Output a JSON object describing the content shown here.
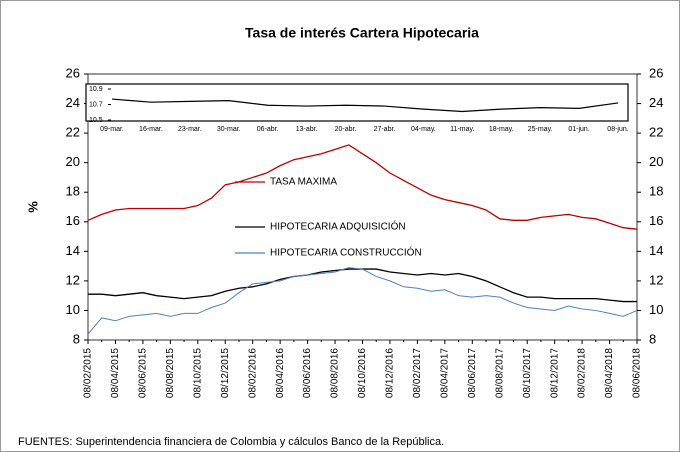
{
  "chart_data": [
    {
      "type": "line",
      "title": "Tasa de interés Cartera Hipotecaria",
      "y_label": "%",
      "source": "FUENTES: Superintendencia financiera de Colombia y cálculos Banco de la República.",
      "categories": [
        "08/02/2015",
        null,
        "08/04/2015",
        null,
        "08/06/2015",
        null,
        "08/08/2015",
        null,
        "08/10/2015",
        null,
        "08/12/2015",
        null,
        "08/02/2016",
        null,
        "08/04/2016",
        null,
        "08/06/2016",
        null,
        "08/08/2016",
        null,
        "08/10/2016",
        null,
        "08/12/2016",
        null,
        "08/02/2017",
        null,
        "08/04/2017",
        null,
        "08/06/2017",
        null,
        "08/08/2017",
        null,
        "08/10/2017",
        null,
        "08/12/2017",
        null,
        "08/02/2018",
        null,
        "08/04/2018",
        null,
        "08/06/2018"
      ],
      "series": [
        {
          "name": "TASA MAXIMA",
          "color": "#c00000",
          "values": [
            16.1,
            16.5,
            16.8,
            16.9,
            16.9,
            16.9,
            16.9,
            16.9,
            17.1,
            17.6,
            18.5,
            18.7,
            19.0,
            19.3,
            19.8,
            20.2,
            20.4,
            20.6,
            20.9,
            21.2,
            20.6,
            20.0,
            19.3,
            18.8,
            18.3,
            17.8,
            17.5,
            17.3,
            17.1,
            16.8,
            16.2,
            16.1,
            16.1,
            16.3,
            16.4,
            16.5,
            16.3,
            16.2,
            15.9,
            15.6,
            15.5
          ]
        },
        {
          "name": "HIPOTECARIA ADQUISICIÓN",
          "color": "#000000",
          "values": [
            11.1,
            11.1,
            11.0,
            11.1,
            11.2,
            11.0,
            10.9,
            10.8,
            10.9,
            11.0,
            11.3,
            11.5,
            11.6,
            11.8,
            12.1,
            12.3,
            12.4,
            12.6,
            12.7,
            12.8,
            12.8,
            12.8,
            12.6,
            12.5,
            12.4,
            12.5,
            12.4,
            12.5,
            12.3,
            12.0,
            11.6,
            11.2,
            10.9,
            10.9,
            10.8,
            10.8,
            10.8,
            10.8,
            10.7,
            10.6,
            10.6
          ]
        },
        {
          "name": "HIPOTECARIA CONSTRUCCIÓN",
          "color": "#4f81bd",
          "values": [
            8.4,
            9.5,
            9.3,
            9.6,
            9.7,
            9.8,
            9.6,
            9.8,
            9.8,
            10.2,
            10.5,
            11.2,
            11.8,
            11.9,
            12.0,
            12.3,
            12.4,
            12.5,
            12.6,
            12.9,
            12.8,
            12.3,
            12.0,
            11.6,
            11.5,
            11.3,
            11.4,
            11.0,
            10.9,
            11.0,
            10.9,
            10.5,
            10.2,
            10.1,
            10.0,
            10.3,
            10.1,
            10.0,
            9.8,
            9.6,
            10.0
          ]
        }
      ],
      "ylim": [
        8,
        26
      ],
      "yticks": [
        8,
        10,
        12,
        14,
        16,
        18,
        20,
        22,
        24,
        26
      ],
      "y2lim": [
        8,
        26
      ],
      "y2ticks": [
        8,
        10,
        12,
        14,
        16,
        18,
        20,
        22,
        24,
        26
      ]
    },
    {
      "type": "line",
      "categories": [
        "09-mar.",
        "16-mar.",
        "23-mar.",
        "30-mar.",
        "06-abr.",
        "13-abr.",
        "20-abr.",
        "27-abr.",
        "04-may.",
        "11-may.",
        "18-may.",
        "25-may.",
        "01-jun.",
        "08-jun."
      ],
      "values": [
        10.77,
        10.73,
        10.74,
        10.75,
        10.69,
        10.68,
        10.69,
        10.68,
        10.64,
        10.61,
        10.64,
        10.66,
        10.65,
        10.72
      ],
      "color": "#000000",
      "ylim": [
        10.5,
        10.9
      ],
      "yticks": [
        10.5,
        10.7,
        10.9
      ]
    }
  ]
}
